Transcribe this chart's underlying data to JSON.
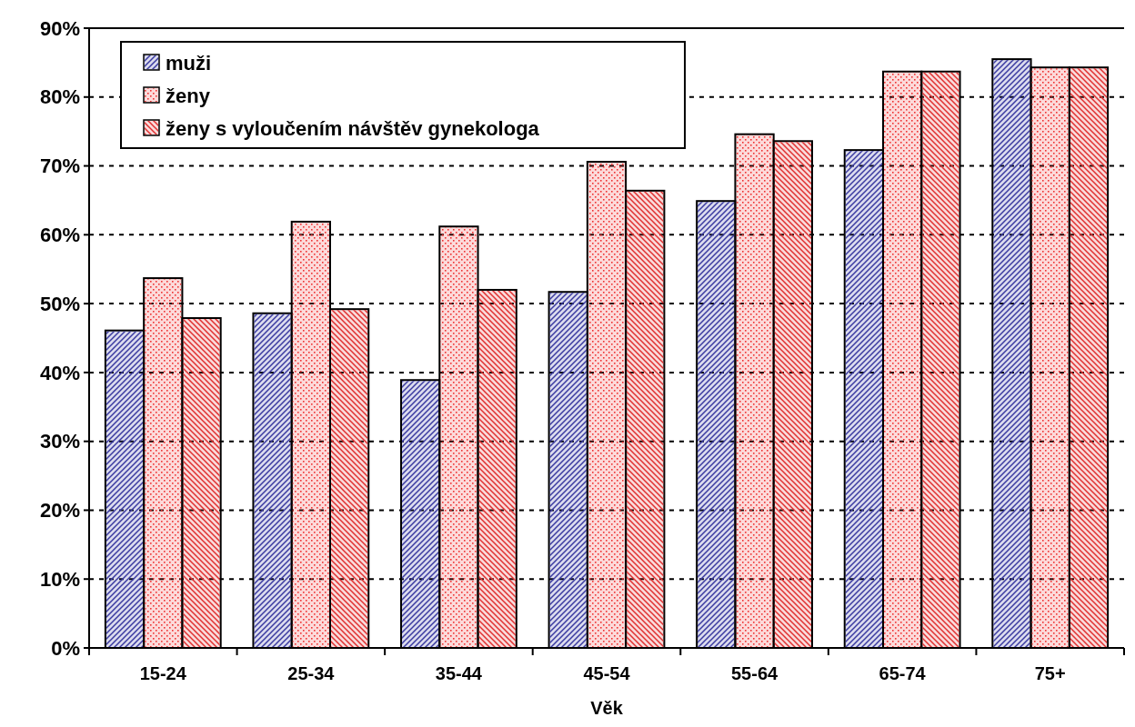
{
  "chart_data": {
    "type": "bar",
    "xlabel": "Věk",
    "categories": [
      "15-24",
      "25-34",
      "35-44",
      "45-54",
      "55-64",
      "65-74",
      "75+"
    ],
    "series": [
      {
        "name": "muži",
        "color": "#3a3aa0",
        "values": [
          46.1,
          48.6,
          38.9,
          51.7,
          64.9,
          72.3,
          85.5
        ]
      },
      {
        "name": "ženy",
        "color": "#ee3333",
        "values": [
          53.7,
          61.9,
          61.2,
          70.6,
          74.6,
          83.7,
          84.3
        ]
      },
      {
        "name": "ženy s vyloučením návštěv gynekologa",
        "color": "#e03030",
        "values": [
          47.9,
          49.2,
          52.0,
          66.4,
          73.6,
          83.7,
          84.3
        ]
      }
    ],
    "ylim": [
      0,
      90
    ],
    "yticks": [
      {
        "value": 0,
        "label": "0%"
      },
      {
        "value": 10,
        "label": "10%"
      },
      {
        "value": 20,
        "label": "20%"
      },
      {
        "value": 30,
        "label": "30%"
      },
      {
        "value": 40,
        "label": "40%"
      },
      {
        "value": 50,
        "label": "50%"
      },
      {
        "value": 60,
        "label": "60%"
      },
      {
        "value": 70,
        "label": "70%"
      },
      {
        "value": 80,
        "label": "80%"
      },
      {
        "value": 90,
        "label": "90%"
      }
    ],
    "grid": "y",
    "legend": "top left"
  }
}
